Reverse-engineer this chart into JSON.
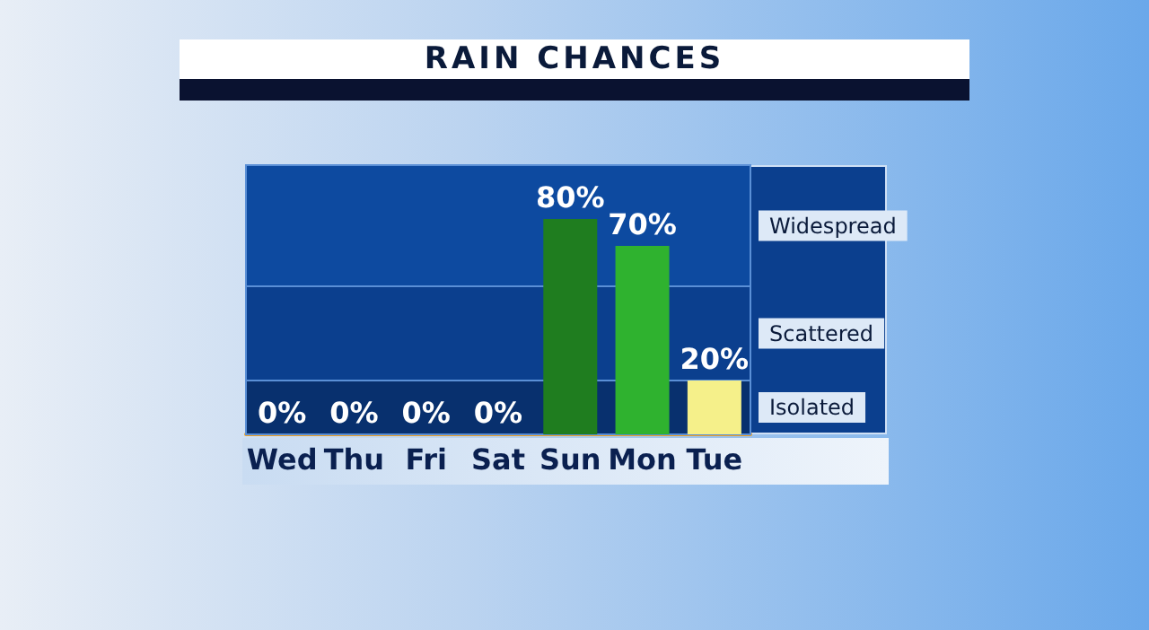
{
  "chart_data": {
    "type": "bar",
    "title": "RAIN CHANCES",
    "categories": [
      "Wed",
      "Thu",
      "Fri",
      "Sat",
      "Sun",
      "Mon",
      "Tue"
    ],
    "values": [
      0,
      0,
      0,
      0,
      80,
      70,
      20
    ],
    "colors": [
      "#2a8a2a",
      "#2a8a2a",
      "#2a8a2a",
      "#2a8a2a",
      "#1f7d1f",
      "#2fb22f",
      "#f5f08a"
    ],
    "value_labels": [
      "0%",
      "0%",
      "0%",
      "0%",
      "80%",
      "70%",
      "20%"
    ],
    "ylim": [
      0,
      100
    ],
    "tick_labels": "x",
    "bands": [
      {
        "axis": "y",
        "from": 55,
        "to": 100,
        "label": "Widespread",
        "color": "#0d4aa0"
      },
      {
        "axis": "y",
        "from": 20,
        "to": 55,
        "label": "Scattered",
        "color": "#0b3f8e"
      },
      {
        "axis": "y",
        "from": 0,
        "to": 20,
        "label": "Isolated",
        "color": "#08306e"
      }
    ]
  }
}
